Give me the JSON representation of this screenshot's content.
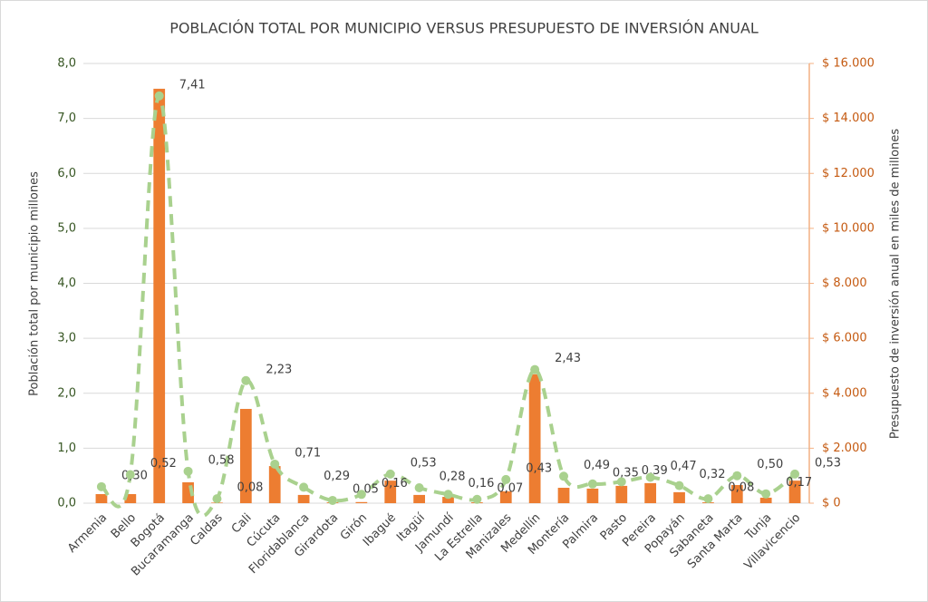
{
  "chart_data": {
    "type": "bar-line",
    "title": "POBLACIÓN TOTAL POR MUNICIPIO VERSUS PRESUPUESTO DE INVERSIÓN ANUAL",
    "y_label": "Población total por municipio millones",
    "y2_label": "Presupuesto de inversión anual en miles de millones",
    "categories": [
      "Armenia",
      "Bello",
      "Bogotá",
      "Bucaramanga",
      "Caldas",
      "Cali",
      "Cúcuta",
      "Floridablanca",
      "Girardota",
      "Girón",
      "Ibagué",
      "Itagüí",
      "Jamundí",
      "La Estrella",
      "Manizales",
      "Medellín",
      "Montería",
      "Palmira",
      "Pasto",
      "Pereira",
      "Popayán",
      "Sabaneta",
      "Santa Marta",
      "Tunja",
      "Villavicencio"
    ],
    "series": [
      {
        "name": "Presupuesto",
        "type": "bar",
        "axis": "y2",
        "color": "#ed7d31",
        "values": [
          330,
          330,
          15080,
          760,
          20,
          3430,
          1350,
          300,
          30,
          40,
          820,
          300,
          230,
          30,
          430,
          4690,
          560,
          530,
          630,
          730,
          400,
          30,
          660,
          200,
          820
        ]
      },
      {
        "name": "Población",
        "type": "line",
        "axis": "y",
        "color": "#a9d18e",
        "values": [
          0.3,
          0.52,
          7.41,
          0.58,
          0.08,
          2.23,
          0.71,
          0.29,
          0.05,
          0.16,
          0.53,
          0.28,
          0.16,
          0.07,
          0.43,
          2.43,
          0.49,
          0.35,
          0.39,
          0.47,
          0.32,
          0.08,
          0.5,
          0.17,
          0.53
        ],
        "value_labels": [
          "0,30",
          "0,52",
          "7,41",
          "0,58",
          "0,08",
          "2,23",
          "0,71",
          "0,29",
          "0,05",
          "0,16",
          "0,53",
          "0,28",
          "0,16",
          "0,07",
          "0,43",
          "2,43",
          "0,49",
          "0,35",
          "0,39",
          "0,47",
          "0,32",
          "0,08",
          "0,50",
          "0,17",
          "0,53"
        ]
      }
    ],
    "ylim": [
      0,
      8
    ],
    "yticks": [
      {
        "value": 0,
        "label": "0,0"
      },
      {
        "value": 1,
        "label": "1,0"
      },
      {
        "value": 2,
        "label": "2,0"
      },
      {
        "value": 3,
        "label": "3,0"
      },
      {
        "value": 4,
        "label": "4,0"
      },
      {
        "value": 5,
        "label": "5,0"
      },
      {
        "value": 6,
        "label": "6,0"
      },
      {
        "value": 7,
        "label": "7,0"
      },
      {
        "value": 8,
        "label": "8,0"
      }
    ],
    "y2lim": [
      0,
      16000
    ],
    "y2ticks": [
      {
        "value": 0,
        "label": "$ 0"
      },
      {
        "value": 2000,
        "label": "$ 2.000"
      },
      {
        "value": 4000,
        "label": "$ 4.000"
      },
      {
        "value": 6000,
        "label": "$ 6.000"
      },
      {
        "value": 8000,
        "label": "$ 8.000"
      },
      {
        "value": 10000,
        "label": "$ 10.000"
      },
      {
        "value": 12000,
        "label": "$ 12.000"
      },
      {
        "value": 14000,
        "label": "$ 14.000"
      },
      {
        "value": 16000,
        "label": "$ 16.000"
      }
    ],
    "grid": true
  }
}
